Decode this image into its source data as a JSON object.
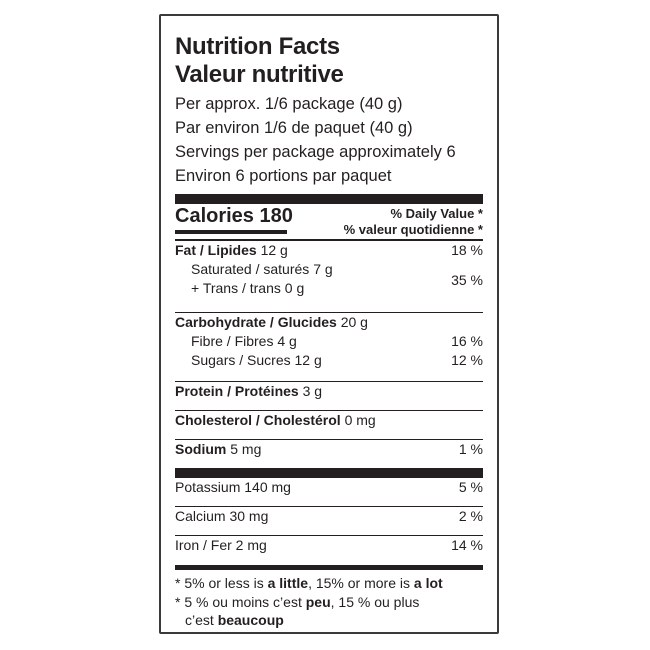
{
  "title_en": "Nutrition Facts",
  "title_fr": "Valeur nutritive",
  "serving": [
    "Per approx. 1/6 package (40 g)",
    "Par environ 1/6 de paquet (40 g)",
    "Servings per package approximately 6",
    "Environ 6 portions par paquet"
  ],
  "calories": {
    "label": "Calories",
    "value": "180"
  },
  "daily_value": {
    "en": "% Daily Value *",
    "fr": "% valeur quotidienne *"
  },
  "fat": {
    "label": "Fat / Lipides",
    "amount": "12 g",
    "dv": "18 %"
  },
  "saturated": {
    "label": "Saturated / saturés",
    "amount": "7 g"
  },
  "trans": {
    "label": "+ Trans / trans",
    "amount": "0 g",
    "dv": "35 %"
  },
  "carbohydrate": {
    "label": "Carbohydrate / Glucides",
    "amount": "20 g"
  },
  "fibre": {
    "label": "Fibre / Fibres",
    "amount": "4 g",
    "dv": "16 %"
  },
  "sugars": {
    "label": "Sugars / Sucres",
    "amount": "12 g",
    "dv": "12 %"
  },
  "protein": {
    "label": "Protein / Protéines",
    "amount": "3 g"
  },
  "cholesterol": {
    "label": "Cholesterol / Cholestérol",
    "amount": "0 mg"
  },
  "sodium": {
    "label": "Sodium",
    "amount": "5 mg",
    "dv": "1 %"
  },
  "potassium": {
    "label": "Potassium 140 mg",
    "dv": "5 %"
  },
  "calcium": {
    "label": "Calcium 30 mg",
    "dv": "2 %"
  },
  "iron": {
    "label": "Iron / Fer 2 mg",
    "dv": "14 %"
  },
  "footnote": {
    "en_a": "* 5% or less is ",
    "en_b": "a little",
    "en_c": ", 15% or more is ",
    "en_d": "a lot",
    "fr_a": "* 5 % ou moins c’est ",
    "fr_b": "peu",
    "fr_c": ", 15 % ou plus",
    "fr_d": "c’est ",
    "fr_e": "beaucoup"
  }
}
